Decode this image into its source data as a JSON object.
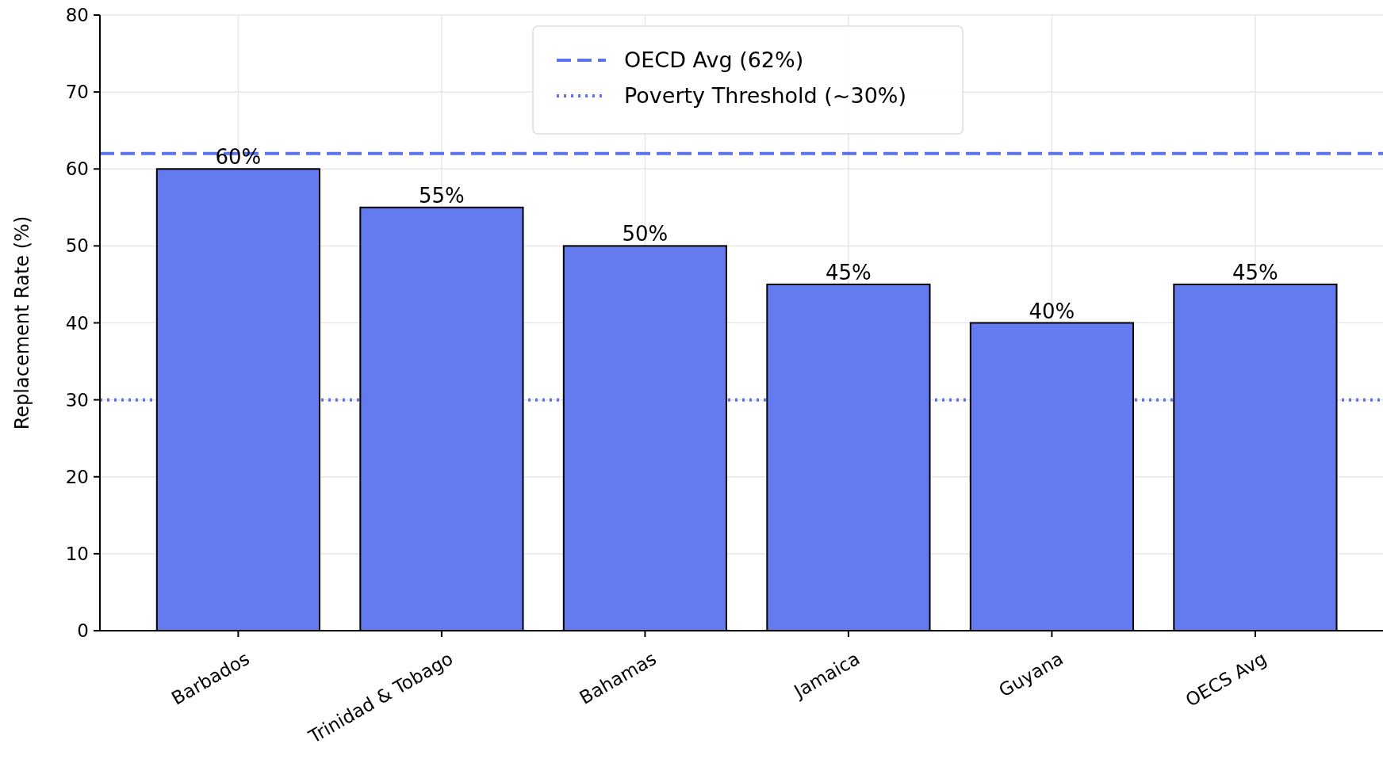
{
  "chart_data": {
    "type": "bar",
    "ylabel": "Replacement Rate (%)",
    "categories": [
      "Barbados",
      "Trinidad & Tobago",
      "Bahamas",
      "Jamaica",
      "Guyana",
      "OECS Avg"
    ],
    "values": [
      60,
      55,
      50,
      45,
      40,
      45
    ],
    "value_labels": [
      "60%",
      "55%",
      "50%",
      "45%",
      "40%",
      "45%"
    ],
    "color": "#637bef",
    "ylim": [
      0,
      80
    ],
    "yticks": [
      0,
      10,
      20,
      30,
      40,
      50,
      60,
      70,
      80
    ],
    "grid": true,
    "legend": "top",
    "ref_lines": [
      {
        "axis": "y",
        "value": 62,
        "label": "OECD Avg (62%)",
        "color": "#5b73ee",
        "line_style": "dashed"
      },
      {
        "axis": "y",
        "value": 30,
        "label": "Poverty Threshold (~30%)",
        "color": "#5b73ee",
        "line_style": "dotted"
      }
    ]
  }
}
